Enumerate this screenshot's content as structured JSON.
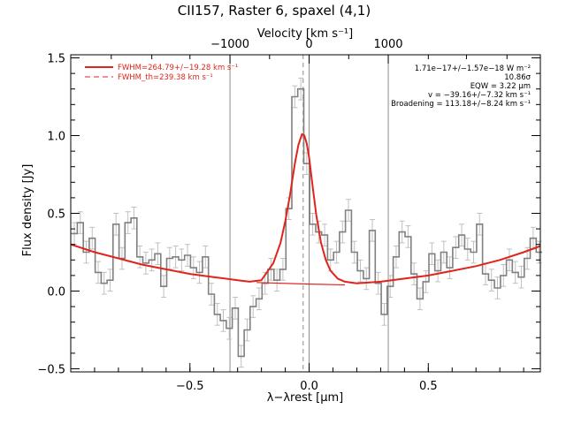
{
  "chart_data": {
    "type": "line",
    "title": "CII157, Raster 6, spaxel (4,1)",
    "xlabel": "λ−λrest [μm]",
    "ylabel": "Flux density [Jy]",
    "top_xlabel": "Velocity [km s⁻¹]",
    "xlim": [
      -1.0,
      0.97
    ],
    "ylim": [
      -0.52,
      1.52
    ],
    "x_ticks": [
      -0.5,
      0.0,
      0.5
    ],
    "x_tick_labels": [
      "−0.5",
      "0.0",
      "0.5"
    ],
    "y_ticks": [
      -0.5,
      0.0,
      0.5,
      1.0,
      1.5
    ],
    "y_tick_labels": [
      "−0.5",
      "0.0",
      "0.5",
      "1.0",
      "1.5"
    ],
    "top_ticks_x": [
      -0.332,
      0.0,
      0.332
    ],
    "top_tick_labels": [
      "−1000",
      "0",
      "1000"
    ],
    "grid": false,
    "legend": {
      "placement": "top-left",
      "entries": [
        {
          "label": "FWHM=264.79+/−19.28 km s⁻¹",
          "style": "solid"
        },
        {
          "label": "FWHM_th=239.38 km s⁻¹",
          "style": "dashed"
        }
      ]
    },
    "annotations": [
      "1.71e−17+/−1.57e−18 W m⁻²",
      "10.86σ",
      "EQW = 3.22 μm",
      "v = −39.16+/−7.32 km s⁻¹",
      "Broadening = 113.18+/−8.24 km s⁻¹"
    ],
    "vertical_lines": [
      -0.332,
      0.0,
      0.332
    ],
    "rest_line": -0.025,
    "series": [
      {
        "style": "histogram",
        "color": "#808080",
        "x": [
          -0.985,
          -0.96,
          -0.935,
          -0.91,
          -0.885,
          -0.86,
          -0.835,
          -0.81,
          -0.785,
          -0.76,
          -0.735,
          -0.71,
          -0.685,
          -0.66,
          -0.635,
          -0.61,
          -0.585,
          -0.56,
          -0.535,
          -0.51,
          -0.485,
          -0.46,
          -0.435,
          -0.41,
          -0.385,
          -0.36,
          -0.335,
          -0.31,
          -0.285,
          -0.26,
          -0.235,
          -0.21,
          -0.185,
          -0.16,
          -0.135,
          -0.11,
          -0.085,
          -0.06,
          -0.035,
          -0.01,
          0.015,
          0.04,
          0.065,
          0.09,
          0.115,
          0.14,
          0.165,
          0.19,
          0.215,
          0.24,
          0.265,
          0.29,
          0.315,
          0.34,
          0.365,
          0.39,
          0.415,
          0.44,
          0.465,
          0.49,
          0.515,
          0.54,
          0.565,
          0.59,
          0.615,
          0.64,
          0.665,
          0.69,
          0.715,
          0.74,
          0.765,
          0.79,
          0.815,
          0.84,
          0.865,
          0.89,
          0.915,
          0.94,
          0.965
        ],
        "y": [
          0.37,
          0.44,
          0.25,
          0.34,
          0.12,
          0.05,
          0.07,
          0.43,
          0.21,
          0.44,
          0.47,
          0.22,
          0.18,
          0.2,
          0.24,
          0.03,
          0.21,
          0.22,
          0.2,
          0.23,
          0.15,
          0.12,
          0.22,
          -0.02,
          -0.15,
          -0.19,
          -0.24,
          -0.11,
          -0.42,
          -0.25,
          -0.1,
          -0.05,
          0.05,
          0.14,
          0.07,
          0.14,
          0.53,
          1.25,
          1.3,
          0.82,
          0.43,
          0.38,
          0.36,
          0.2,
          0.25,
          0.38,
          0.52,
          0.25,
          0.13,
          0.08,
          0.39,
          0.05,
          -0.15,
          0.03,
          0.22,
          0.38,
          0.35,
          0.11,
          -0.05,
          0.06,
          0.24,
          0.13,
          0.25,
          0.15,
          0.28,
          0.36,
          0.27,
          0.25,
          0.43,
          0.11,
          0.07,
          0.02,
          0.1,
          0.2,
          0.12,
          0.09,
          0.21,
          0.34,
          0.25
        ],
        "errors": [
          0.07,
          0.07,
          0.07,
          0.07,
          0.07,
          0.07,
          0.07,
          0.07,
          0.07,
          0.07,
          0.07,
          0.07,
          0.07,
          0.07,
          0.07,
          0.07,
          0.07,
          0.07,
          0.07,
          0.07,
          0.07,
          0.07,
          0.07,
          0.07,
          0.07,
          0.07,
          0.07,
          0.07,
          0.07,
          0.07,
          0.07,
          0.07,
          0.07,
          0.07,
          0.07,
          0.07,
          0.07,
          0.07,
          0.07,
          0.07,
          0.07,
          0.07,
          0.07,
          0.07,
          0.07,
          0.07,
          0.07,
          0.07,
          0.07,
          0.07,
          0.07,
          0.07,
          0.07,
          0.07,
          0.07,
          0.07,
          0.07,
          0.07,
          0.07,
          0.07,
          0.07,
          0.07,
          0.07,
          0.07,
          0.07,
          0.07,
          0.07,
          0.07,
          0.07,
          0.07,
          0.07,
          0.07,
          0.07,
          0.07,
          0.07,
          0.07,
          0.07,
          0.07,
          0.07
        ]
      },
      {
        "style": "model",
        "color": "#e0241b",
        "x": [
          -1.0,
          -0.9,
          -0.8,
          -0.7,
          -0.6,
          -0.5,
          -0.4,
          -0.3,
          -0.25,
          -0.2,
          -0.15,
          -0.12,
          -0.1,
          -0.08,
          -0.06,
          -0.045,
          -0.03,
          -0.02,
          -0.01,
          0.0,
          0.015,
          0.03,
          0.05,
          0.07,
          0.09,
          0.12,
          0.15,
          0.2,
          0.3,
          0.4,
          0.5,
          0.6,
          0.7,
          0.8,
          0.9,
          0.97
        ],
        "y": [
          0.3,
          0.25,
          0.21,
          0.17,
          0.14,
          0.11,
          0.09,
          0.07,
          0.06,
          0.07,
          0.18,
          0.31,
          0.45,
          0.62,
          0.82,
          0.94,
          1.01,
          1.0,
          0.95,
          0.86,
          0.67,
          0.49,
          0.31,
          0.2,
          0.13,
          0.08,
          0.06,
          0.05,
          0.06,
          0.08,
          0.1,
          0.13,
          0.16,
          0.2,
          0.25,
          0.29
        ]
      },
      {
        "style": "baseline",
        "color": "#e0241b",
        "x": [
          -0.22,
          0.0,
          0.15
        ],
        "y": [
          0.055,
          0.045,
          0.04
        ]
      }
    ]
  }
}
